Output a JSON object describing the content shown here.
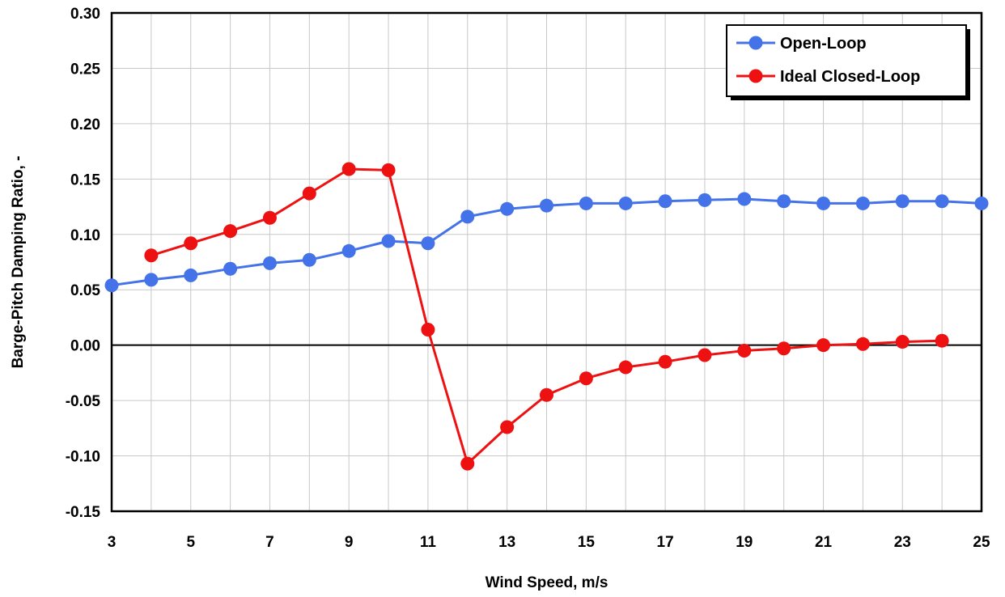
{
  "chart_data": {
    "type": "line",
    "xlabel": "Wind Speed, m/s",
    "ylabel": "Barge-Pitch Damping Ratio, -",
    "xlim": [
      3,
      25
    ],
    "ylim": [
      -0.15,
      0.3
    ],
    "x_ticks": [
      "3",
      "5",
      "7",
      "9",
      "11",
      "13",
      "15",
      "17",
      "19",
      "21",
      "23",
      "25"
    ],
    "y_ticks": [
      "-0.15",
      "-0.10",
      "-0.05",
      "0.00",
      "0.05",
      "0.10",
      "0.15",
      "0.20",
      "0.25",
      "0.30"
    ],
    "grid": true,
    "legend_position": "top-right",
    "series": [
      {
        "name": "Open-Loop",
        "color": "#4472e8",
        "x": [
          3,
          4,
          5,
          6,
          7,
          8,
          9,
          10,
          11,
          12,
          13,
          14,
          15,
          16,
          17,
          18,
          19,
          20,
          21,
          22,
          23,
          24,
          25
        ],
        "y": [
          0.054,
          0.059,
          0.063,
          0.069,
          0.074,
          0.077,
          0.085,
          0.094,
          0.092,
          0.116,
          0.123,
          0.126,
          0.128,
          0.128,
          0.13,
          0.131,
          0.132,
          0.13,
          0.128,
          0.128,
          0.13,
          0.13,
          0.128
        ]
      },
      {
        "name": "Ideal Closed-Loop",
        "color": "#ee1111",
        "x": [
          4,
          5,
          6,
          7,
          8,
          9,
          10,
          11,
          12,
          13,
          14,
          15,
          16,
          17,
          18,
          19,
          20,
          21,
          22,
          23,
          24
        ],
        "y": [
          0.081,
          0.092,
          0.103,
          0.115,
          0.137,
          0.159,
          0.158,
          0.014,
          -0.107,
          -0.074,
          -0.045,
          -0.03,
          -0.02,
          -0.015,
          -0.009,
          -0.005,
          -0.003,
          0.0,
          0.001,
          0.003,
          0.004
        ]
      }
    ]
  }
}
